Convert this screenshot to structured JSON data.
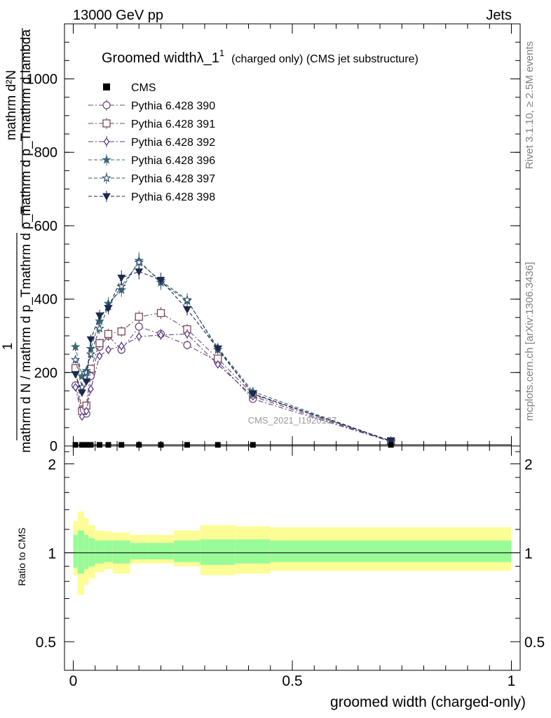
{
  "header": {
    "left": "13000 GeV pp",
    "right": "Jets"
  },
  "chart_data": {
    "type": "line",
    "title": "Groomed widthλ_1",
    "title_superscript": "1",
    "title_suffix": "(charged only) (CMS jet substructure)",
    "xlabel": "groomed width (charged-only)",
    "ylabel_top": "1",
    "ylabel_fraction_numerator": "mathrm d^{2}N",
    "ylabel_fraction_denominator": "mathrm d N / mathrm d p_T mathrm d p_T mathrm d lambda",
    "ylabel_top_line": "mathrm d²N",
    "ylabel_bottom_line": "mathrm d p_Tmathrm d lambda",
    "ylabel_left_line": "mathrm d N / mathrm d p_Tmathrm d p_T",
    "ratio_ylabel": "Ratio to CMS",
    "watermark": "CMS_2021_I1920187",
    "side_label_top": "Rivet 3.1.10, ≥ 2.5M events",
    "side_label_bottom": "mcplots.cern.ch [arXiv:1306.3436]",
    "xlim": [
      -0.02,
      1.02
    ],
    "ylim": [
      0,
      1150
    ],
    "ratio_ylim": [
      0.4,
      2.3
    ],
    "x_ticks": [
      {
        "v": 0,
        "label": "0"
      },
      {
        "v": 0.5,
        "label": "0.5"
      },
      {
        "v": 1,
        "label": "1"
      }
    ],
    "y_ticks": [
      {
        "v": 0,
        "label": "0"
      },
      {
        "v": 200,
        "label": "200"
      },
      {
        "v": 400,
        "label": "400"
      },
      {
        "v": 600,
        "label": "600"
      },
      {
        "v": 800,
        "label": "800"
      },
      {
        "v": 1000,
        "label": "1000"
      }
    ],
    "ratio_ticks": [
      {
        "v": 0.5,
        "label": "0.5"
      },
      {
        "v": 1,
        "label": "1"
      },
      {
        "v": 2,
        "label": "2"
      }
    ],
    "x": [
      0.005,
      0.02,
      0.03,
      0.04,
      0.06,
      0.08,
      0.11,
      0.15,
      0.2,
      0.26,
      0.33,
      0.41,
      0.725
    ],
    "cms": {
      "name": "CMS",
      "values": [
        3,
        3,
        3,
        3,
        3,
        3,
        3,
        3,
        3,
        3,
        3,
        3,
        3
      ]
    },
    "series": [
      {
        "name": "Pythia 6.428 390",
        "color": "#6b4a78",
        "marker": "circle-open",
        "dash": "7,3,2,3",
        "values": [
          165,
          100,
          88,
          190,
          270,
          300,
          262,
          325,
          305,
          275,
          230,
          128,
          12
        ]
      },
      {
        "name": "Pythia 6.428 391",
        "color": "#7a4a55",
        "marker": "square-open",
        "dash": "7,3,2,3",
        "values": [
          212,
          95,
          110,
          210,
          280,
          305,
          312,
          352,
          362,
          318,
          238,
          140,
          13
        ]
      },
      {
        "name": "Pythia 6.428 392",
        "color": "#5a3a8a",
        "marker": "diamond-open",
        "dash": "7,3,2,3",
        "values": [
          160,
          80,
          95,
          155,
          245,
          262,
          272,
          298,
          302,
          305,
          222,
          135,
          12
        ]
      },
      {
        "name": "Pythia 6.428 396",
        "color": "#3a6a7a",
        "marker": "star-filled",
        "dash": "5,3",
        "values": [
          270,
          190,
          205,
          265,
          340,
          388,
          425,
          505,
          445,
          395,
          268,
          148,
          13
        ]
      },
      {
        "name": "Pythia 6.428 397",
        "color": "#34506a",
        "marker": "star-open",
        "dash": "5,3",
        "values": [
          235,
          160,
          200,
          250,
          320,
          380,
          435,
          500,
          450,
          398,
          262,
          142,
          13
        ]
      },
      {
        "name": "Pythia 6.428 398",
        "color": "#1c2a50",
        "marker": "triangle-down",
        "dash": "5,3",
        "values": [
          195,
          145,
          175,
          290,
          355,
          375,
          458,
          475,
          452,
          372,
          265,
          142,
          14
        ]
      }
    ],
    "ratio_bands": {
      "edges": [
        0,
        0.01,
        0.025,
        0.035,
        0.05,
        0.07,
        0.09,
        0.13,
        0.17,
        0.23,
        0.29,
        0.37,
        0.45,
        1.0
      ],
      "yellow_low": [
        0.84,
        0.72,
        0.78,
        0.82,
        0.86,
        0.88,
        0.85,
        0.92,
        0.92,
        0.9,
        0.84,
        0.85,
        0.87
      ],
      "yellow_high": [
        1.28,
        1.38,
        1.31,
        1.24,
        1.19,
        1.18,
        1.17,
        1.15,
        1.15,
        1.19,
        1.24,
        1.23,
        1.22
      ],
      "green_low": [
        0.89,
        0.85,
        0.88,
        0.9,
        0.92,
        0.93,
        0.92,
        0.95,
        0.95,
        0.93,
        0.91,
        0.92,
        0.93
      ],
      "green_high": [
        1.15,
        1.19,
        1.15,
        1.12,
        1.1,
        1.1,
        1.1,
        1.08,
        1.08,
        1.1,
        1.11,
        1.11,
        1.1
      ]
    }
  }
}
